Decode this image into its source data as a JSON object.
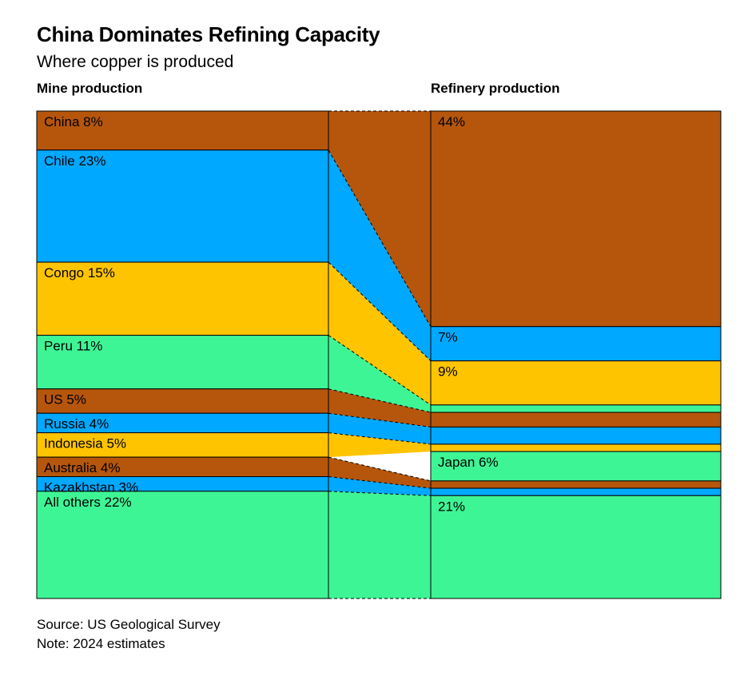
{
  "title": "China Dominates Refining Capacity",
  "subtitle": "Where copper is produced",
  "source": "Source: US Geological Survey",
  "note": "Note: 2024 estimates",
  "colors": {
    "brown": "#b5560c",
    "blue": "#00a8ff",
    "yellow": "#ffc400",
    "green": "#3ef595"
  },
  "chart_data": {
    "type": "stacked-bar-flow",
    "unit": "%",
    "columns": [
      {
        "key": "mine",
        "header": "Mine production",
        "segments": [
          {
            "name": "China",
            "label": "China 8%",
            "value": 8,
            "color": "brown"
          },
          {
            "name": "Chile",
            "label": "Chile 23%",
            "value": 23,
            "color": "blue"
          },
          {
            "name": "Congo",
            "label": "Congo 15%",
            "value": 15,
            "color": "yellow"
          },
          {
            "name": "Peru",
            "label": "Peru 11%",
            "value": 11,
            "color": "green"
          },
          {
            "name": "US",
            "label": "US 5%",
            "value": 5,
            "color": "brown"
          },
          {
            "name": "Russia",
            "label": "Russia 4%",
            "value": 4,
            "color": "blue"
          },
          {
            "name": "Indonesia",
            "label": "Indonesia 5%",
            "value": 5,
            "color": "yellow"
          },
          {
            "name": "Australia",
            "label": "Australia 4%",
            "value": 4,
            "color": "brown"
          },
          {
            "name": "Kazakhstan",
            "label": "Kazakhstan 3%",
            "value": 3,
            "color": "blue"
          },
          {
            "name": "All others",
            "label": "All others 22%",
            "value": 22,
            "color": "green"
          }
        ]
      },
      {
        "key": "refinery",
        "header": "Refinery production",
        "segments": [
          {
            "name": "China",
            "label": "44%",
            "value": 44,
            "color": "brown"
          },
          {
            "name": "Chile",
            "label": "7%",
            "value": 7,
            "color": "blue"
          },
          {
            "name": "Congo",
            "label": "9%",
            "value": 9,
            "color": "yellow"
          },
          {
            "name": "Peru",
            "label": "",
            "value": 1.5,
            "color": "green"
          },
          {
            "name": "US",
            "label": "",
            "value": 3,
            "color": "brown"
          },
          {
            "name": "Russia",
            "label": "",
            "value": 3.5,
            "color": "blue"
          },
          {
            "name": "Indonesia",
            "label": "",
            "value": 1.5,
            "color": "yellow"
          },
          {
            "name": "Japan",
            "label": "Japan 6%",
            "value": 6,
            "color": "green"
          },
          {
            "name": "Australia",
            "label": "",
            "value": 1.5,
            "color": "brown"
          },
          {
            "name": "Kazakhstan",
            "label": "",
            "value": 1.5,
            "color": "blue"
          },
          {
            "name": "All others",
            "label": "21%",
            "value": 21,
            "color": "green"
          }
        ]
      }
    ]
  }
}
